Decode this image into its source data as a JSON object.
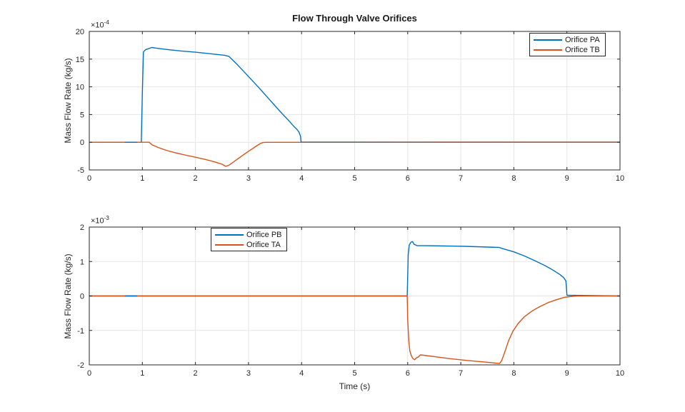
{
  "figure": {
    "title": "Flow Through Valve Orifices",
    "background": "#ffffff"
  },
  "colors": {
    "blue": "#0072BD",
    "orange": "#D95319",
    "grid": "#e6e6e6",
    "axis": "#262626",
    "text": "#262626",
    "title_text": "#1a1a1a"
  },
  "chart_data": [
    {
      "type": "line",
      "position": "top",
      "title": "Flow Through Valve Orifices",
      "xlabel": "",
      "ylabel": "Mass Flow Rate (kg/s)",
      "exp_base": "×10",
      "exp_sup": "-4",
      "y_scale": "1e-4",
      "xlim": [
        0,
        10
      ],
      "ylim": [
        -5,
        20
      ],
      "xticks": [
        0,
        1,
        2,
        3,
        4,
        5,
        6,
        7,
        8,
        9,
        10
      ],
      "yticks": [
        -5,
        0,
        5,
        10,
        15,
        20
      ],
      "grid": true,
      "legend_position": "top-right",
      "series": [
        {
          "name": "Orifice PA",
          "color": "#0072BD",
          "in_legend": true,
          "points": [
            [
              0,
              0
            ],
            [
              0.98,
              0
            ],
            [
              1.0,
              9.0
            ],
            [
              1.02,
              16.3
            ],
            [
              1.06,
              16.7
            ],
            [
              1.12,
              16.9
            ],
            [
              1.18,
              17.1
            ],
            [
              1.25,
              17.0
            ],
            [
              1.45,
              16.75
            ],
            [
              1.7,
              16.5
            ],
            [
              2.0,
              16.25
            ],
            [
              2.3,
              15.95
            ],
            [
              2.55,
              15.7
            ],
            [
              2.63,
              15.5
            ],
            [
              2.8,
              13.9
            ],
            [
              3.0,
              11.85
            ],
            [
              3.2,
              9.8
            ],
            [
              3.4,
              7.65
            ],
            [
              3.6,
              5.5
            ],
            [
              3.75,
              4.0
            ],
            [
              3.85,
              2.9
            ],
            [
              3.91,
              2.35
            ],
            [
              3.95,
              1.85
            ],
            [
              3.98,
              1.1
            ],
            [
              3.99,
              0.1
            ],
            [
              4.0,
              0.03
            ],
            [
              10,
              0.03
            ]
          ]
        },
        {
          "name": "Orifice TB",
          "color": "#D95319",
          "in_legend": true,
          "points": [
            [
              0,
              0
            ],
            [
              1.13,
              0
            ],
            [
              1.16,
              -0.3
            ],
            [
              1.19,
              -0.5
            ],
            [
              1.22,
              -0.62
            ],
            [
              1.3,
              -0.95
            ],
            [
              1.45,
              -1.45
            ],
            [
              1.6,
              -1.85
            ],
            [
              1.8,
              -2.3
            ],
            [
              2.0,
              -2.7
            ],
            [
              2.2,
              -3.15
            ],
            [
              2.35,
              -3.5
            ],
            [
              2.5,
              -3.95
            ],
            [
              2.57,
              -4.35
            ],
            [
              2.63,
              -4.15
            ],
            [
              2.72,
              -3.55
            ],
            [
              2.82,
              -2.85
            ],
            [
              2.92,
              -2.15
            ],
            [
              3.02,
              -1.5
            ],
            [
              3.1,
              -1.0
            ],
            [
              3.17,
              -0.55
            ],
            [
              3.22,
              -0.25
            ],
            [
              3.27,
              -0.07
            ],
            [
              3.32,
              -0.01
            ],
            [
              10,
              0
            ]
          ]
        },
        {
          "name": "dither segment",
          "color": "#0072BD",
          "in_legend": false,
          "points": [
            [
              0.67,
              0
            ],
            [
              0.9,
              0
            ]
          ]
        }
      ]
    },
    {
      "type": "line",
      "position": "bottom",
      "title": "",
      "xlabel": "Time (s)",
      "ylabel": "Mass Flow Rate (kg/s)",
      "exp_base": "×10",
      "exp_sup": "-3",
      "y_scale": "1e-3",
      "xlim": [
        0,
        10
      ],
      "ylim": [
        -2,
        2
      ],
      "xticks": [
        0,
        1,
        2,
        3,
        4,
        5,
        6,
        7,
        8,
        9,
        10
      ],
      "yticks": [
        -2,
        -1,
        0,
        1,
        2
      ],
      "grid": true,
      "legend_position": "top-left-inset",
      "series": [
        {
          "name": "Orifice PB",
          "color": "#0072BD",
          "in_legend": true,
          "points": [
            [
              0,
              0
            ],
            [
              5.99,
              0
            ],
            [
              6.0,
              0.6
            ],
            [
              6.01,
              1.2
            ],
            [
              6.03,
              1.48
            ],
            [
              6.06,
              1.56
            ],
            [
              6.09,
              1.58
            ],
            [
              6.12,
              1.5
            ],
            [
              6.18,
              1.46
            ],
            [
              6.35,
              1.46
            ],
            [
              6.7,
              1.45
            ],
            [
              7.1,
              1.44
            ],
            [
              7.5,
              1.42
            ],
            [
              7.72,
              1.41
            ],
            [
              7.8,
              1.37
            ],
            [
              8.0,
              1.28
            ],
            [
              8.2,
              1.16
            ],
            [
              8.4,
              1.02
            ],
            [
              8.6,
              0.87
            ],
            [
              8.75,
              0.74
            ],
            [
              8.87,
              0.62
            ],
            [
              8.94,
              0.53
            ],
            [
              8.98,
              0.44
            ],
            [
              8.99,
              0.25
            ],
            [
              9.0,
              0.02
            ],
            [
              10,
              0
            ]
          ]
        },
        {
          "name": "Orifice TA",
          "color": "#D95319",
          "in_legend": true,
          "points": [
            [
              0,
              0
            ],
            [
              5.99,
              0
            ],
            [
              6.0,
              -0.7
            ],
            [
              6.02,
              -1.3
            ],
            [
              6.04,
              -1.6
            ],
            [
              6.07,
              -1.74
            ],
            [
              6.1,
              -1.82
            ],
            [
              6.13,
              -1.85
            ],
            [
              6.16,
              -1.8
            ],
            [
              6.2,
              -1.77
            ],
            [
              6.24,
              -1.71
            ],
            [
              6.3,
              -1.72
            ],
            [
              6.5,
              -1.76
            ],
            [
              6.8,
              -1.82
            ],
            [
              7.1,
              -1.87
            ],
            [
              7.4,
              -1.91
            ],
            [
              7.6,
              -1.94
            ],
            [
              7.73,
              -1.96
            ],
            [
              7.77,
              -1.88
            ],
            [
              7.83,
              -1.62
            ],
            [
              7.9,
              -1.3
            ],
            [
              7.98,
              -1.03
            ],
            [
              8.08,
              -0.8
            ],
            [
              8.2,
              -0.6
            ],
            [
              8.35,
              -0.43
            ],
            [
              8.5,
              -0.3
            ],
            [
              8.65,
              -0.19
            ],
            [
              8.8,
              -0.11
            ],
            [
              8.95,
              -0.04
            ],
            [
              9.1,
              -0.01
            ],
            [
              9.2,
              0
            ],
            [
              10,
              0
            ]
          ]
        },
        {
          "name": "dither segment",
          "color": "#0072BD",
          "in_legend": false,
          "points": [
            [
              0.67,
              0
            ],
            [
              0.9,
              0
            ]
          ]
        }
      ]
    }
  ]
}
